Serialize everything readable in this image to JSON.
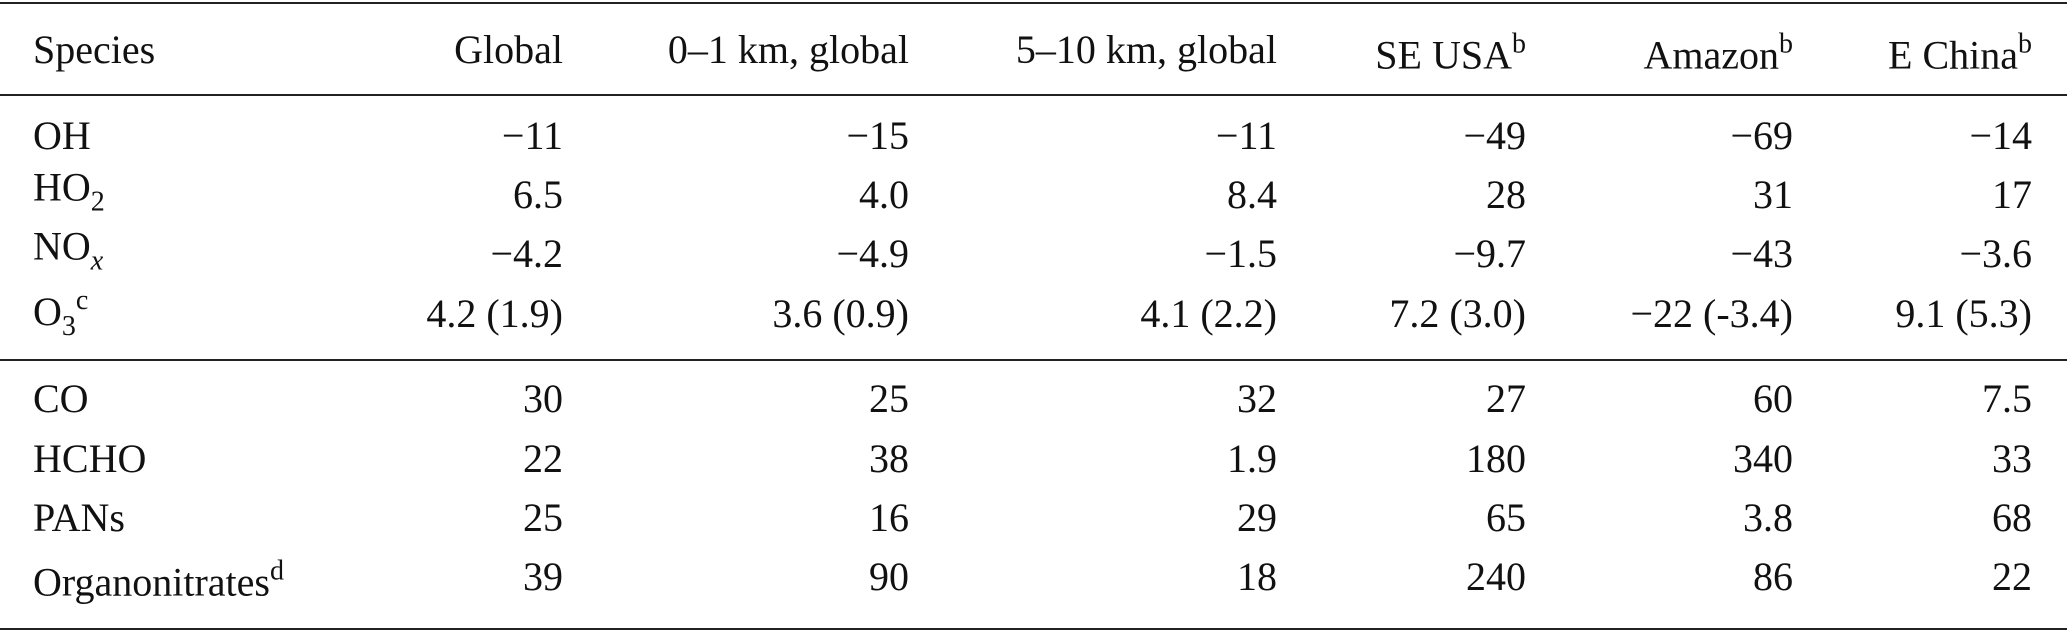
{
  "table": {
    "header": [
      {
        "text": "Species"
      },
      {
        "text": "Global"
      },
      {
        "text": "0–1 km, global"
      },
      {
        "text": "5–10 km, global"
      },
      {
        "text": "SE USA",
        "sup": "b"
      },
      {
        "text": "Amazon",
        "sup": "b"
      },
      {
        "text": "E China",
        "sup": "b"
      }
    ],
    "groups": [
      {
        "rows": [
          {
            "species": {
              "text": "OH"
            },
            "values": [
              "−11",
              "−15",
              "−11",
              "−49",
              "−69",
              "−14"
            ]
          },
          {
            "species": {
              "text": "HO",
              "sub": "2"
            },
            "values": [
              "6.5",
              "4.0",
              "8.4",
              "28",
              "31",
              "17"
            ]
          },
          {
            "species": {
              "text": "NO",
              "sub": "x"
            },
            "values": [
              "−4.2",
              "−4.9",
              "−1.5",
              "−9.7",
              "−43",
              "−3.6"
            ]
          },
          {
            "species": {
              "text": "O",
              "sub": "3",
              "sup": "c"
            },
            "values": [
              "4.2 (1.9)",
              "3.6 (0.9)",
              "4.1 (2.2)",
              "7.2 (3.0)",
              "−22 (-3.4)",
              "9.1 (5.3)"
            ]
          }
        ]
      },
      {
        "rows": [
          {
            "species": {
              "text": "CO"
            },
            "values": [
              "30",
              "25",
              "32",
              "27",
              "60",
              "7.5"
            ]
          },
          {
            "species": {
              "text": "HCHO"
            },
            "values": [
              "22",
              "38",
              "1.9",
              "180",
              "340",
              "33"
            ]
          },
          {
            "species": {
              "text": "PANs"
            },
            "values": [
              "25",
              "16",
              "29",
              "65",
              "3.8",
              "68"
            ]
          },
          {
            "species": {
              "text": "Organonitrates",
              "sup": "d"
            },
            "values": [
              "39",
              "90",
              "18",
              "240",
              "86",
              "22"
            ]
          }
        ]
      }
    ]
  }
}
